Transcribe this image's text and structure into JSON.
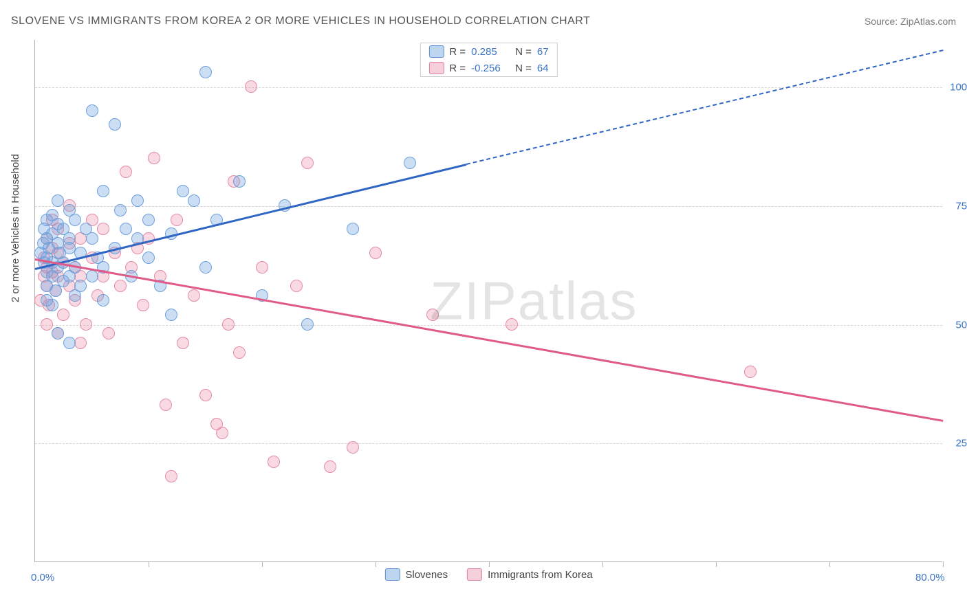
{
  "header": {
    "title": "SLOVENE VS IMMIGRANTS FROM KOREA 2 OR MORE VEHICLES IN HOUSEHOLD CORRELATION CHART",
    "source_prefix": "Source: ",
    "source_name": "ZipAtlas.com"
  },
  "axes": {
    "ylabel": "2 or more Vehicles in Household",
    "x_min": 0,
    "x_max": 80,
    "y_min": 0,
    "y_max": 110,
    "y_gridlines": [
      25,
      50,
      75,
      100
    ],
    "y_tick_labels": [
      "25.0%",
      "50.0%",
      "75.0%",
      "100.0%"
    ],
    "x_ticks": [
      0,
      10,
      20,
      30,
      40,
      50,
      60,
      70,
      80
    ],
    "x_tick_labels": {
      "0": "0.0%",
      "80": "80.0%"
    }
  },
  "watermark": {
    "part1": "ZIP",
    "part2": "atlas"
  },
  "series_a": {
    "name": "Slovenes",
    "color_fill": "rgba(108,160,220,0.35)",
    "color_stroke": "#6da0dc",
    "swatch_fill": "#bdd5ef",
    "swatch_stroke": "#5a8fd0",
    "line_color": "#2f66c4",
    "r_label": "R =",
    "r_value": "0.285",
    "n_label": "N =",
    "n_value": "67",
    "trend": {
      "x1": 0,
      "y1": 62,
      "x2": 38,
      "y2": 84,
      "dash_x2": 80,
      "dash_y2": 108
    },
    "points": [
      [
        0.5,
        65
      ],
      [
        0.7,
        67
      ],
      [
        0.8,
        63
      ],
      [
        0.8,
        70
      ],
      [
        1,
        55
      ],
      [
        1,
        58
      ],
      [
        1,
        61
      ],
      [
        1,
        64
      ],
      [
        1,
        68
      ],
      [
        1,
        72
      ],
      [
        1.2,
        66
      ],
      [
        1.5,
        54
      ],
      [
        1.5,
        60
      ],
      [
        1.5,
        63
      ],
      [
        1.5,
        69
      ],
      [
        1.5,
        73
      ],
      [
        1.8,
        57
      ],
      [
        2,
        48
      ],
      [
        2,
        62
      ],
      [
        2,
        67
      ],
      [
        2,
        71
      ],
      [
        2,
        76
      ],
      [
        2.2,
        65
      ],
      [
        2.5,
        59
      ],
      [
        2.5,
        63
      ],
      [
        2.5,
        70
      ],
      [
        3,
        46
      ],
      [
        3,
        60
      ],
      [
        3,
        66
      ],
      [
        3,
        68
      ],
      [
        3,
        74
      ],
      [
        3.5,
        56
      ],
      [
        3.5,
        62
      ],
      [
        3.5,
        72
      ],
      [
        4,
        58
      ],
      [
        4,
        65
      ],
      [
        4.5,
        70
      ],
      [
        5,
        95
      ],
      [
        5,
        60
      ],
      [
        5,
        68
      ],
      [
        5.5,
        64
      ],
      [
        6,
        78
      ],
      [
        6,
        55
      ],
      [
        6,
        62
      ],
      [
        7,
        92
      ],
      [
        7,
        66
      ],
      [
        7.5,
        74
      ],
      [
        8,
        70
      ],
      [
        8.5,
        60
      ],
      [
        9,
        76
      ],
      [
        9,
        68
      ],
      [
        10,
        72
      ],
      [
        10,
        64
      ],
      [
        11,
        58
      ],
      [
        12,
        69
      ],
      [
        12,
        52
      ],
      [
        13,
        78
      ],
      [
        14,
        76
      ],
      [
        15,
        103
      ],
      [
        15,
        62
      ],
      [
        16,
        72
      ],
      [
        18,
        80
      ],
      [
        20,
        56
      ],
      [
        22,
        75
      ],
      [
        24,
        50
      ],
      [
        28,
        70
      ],
      [
        33,
        84
      ]
    ]
  },
  "series_b": {
    "name": "Immigrants from Korea",
    "color_fill": "rgba(235,130,160,0.30)",
    "color_stroke": "#e48ba5",
    "swatch_fill": "#f5d0db",
    "swatch_stroke": "#e07c9c",
    "line_color": "#e05a88",
    "r_label": "R =",
    "r_value": "-0.256",
    "n_label": "N =",
    "n_value": "64",
    "trend": {
      "x1": 0,
      "y1": 64,
      "x2": 80,
      "y2": 30
    },
    "points": [
      [
        0.5,
        55
      ],
      [
        0.8,
        60
      ],
      [
        0.8,
        64
      ],
      [
        1,
        50
      ],
      [
        1,
        58
      ],
      [
        1,
        62
      ],
      [
        1,
        68
      ],
      [
        1.2,
        54
      ],
      [
        1.5,
        61
      ],
      [
        1.5,
        66
      ],
      [
        1.5,
        72
      ],
      [
        1.8,
        57
      ],
      [
        2,
        48
      ],
      [
        2,
        60
      ],
      [
        2,
        65
      ],
      [
        2,
        70
      ],
      [
        2.5,
        52
      ],
      [
        2.5,
        63
      ],
      [
        3,
        58
      ],
      [
        3,
        67
      ],
      [
        3,
        75
      ],
      [
        3.5,
        55
      ],
      [
        3.5,
        62
      ],
      [
        4,
        46
      ],
      [
        4,
        60
      ],
      [
        4,
        68
      ],
      [
        4.5,
        50
      ],
      [
        5,
        64
      ],
      [
        5,
        72
      ],
      [
        5.5,
        56
      ],
      [
        6,
        60
      ],
      [
        6,
        70
      ],
      [
        6.5,
        48
      ],
      [
        7,
        65
      ],
      [
        7.5,
        58
      ],
      [
        8,
        82
      ],
      [
        8.5,
        62
      ],
      [
        9,
        66
      ],
      [
        9.5,
        54
      ],
      [
        10,
        68
      ],
      [
        10.5,
        85
      ],
      [
        11,
        60
      ],
      [
        11.5,
        33
      ],
      [
        12,
        18
      ],
      [
        12.5,
        72
      ],
      [
        13,
        46
      ],
      [
        14,
        56
      ],
      [
        15,
        35
      ],
      [
        16,
        29
      ],
      [
        16.5,
        27
      ],
      [
        17,
        50
      ],
      [
        17.5,
        80
      ],
      [
        18,
        44
      ],
      [
        19,
        100
      ],
      [
        20,
        62
      ],
      [
        21,
        21
      ],
      [
        23,
        58
      ],
      [
        24,
        84
      ],
      [
        26,
        20
      ],
      [
        28,
        24
      ],
      [
        30,
        65
      ],
      [
        35,
        52
      ],
      [
        42,
        50
      ],
      [
        63,
        40
      ]
    ]
  }
}
